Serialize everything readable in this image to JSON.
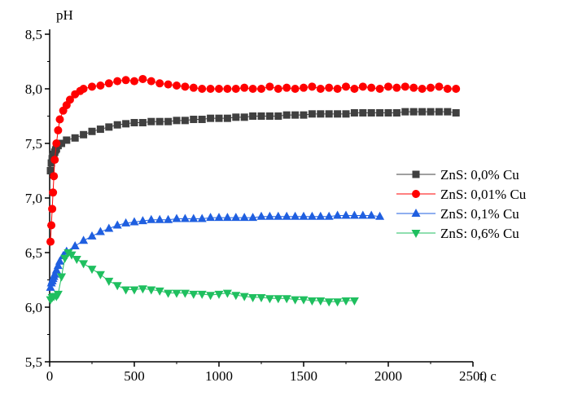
{
  "chart_data": {
    "type": "scatter",
    "title": "",
    "xlabel": "t, c",
    "ylabel": "pH",
    "xlim": [
      0,
      2500
    ],
    "ylim": [
      5.5,
      8.5
    ],
    "xticks": [
      0,
      500,
      1000,
      1500,
      2000,
      2500
    ],
    "yticks": [
      5.5,
      6.0,
      6.5,
      7.0,
      7.5,
      8.0,
      8.5
    ],
    "ytick_labels": [
      "5,5",
      "6,0",
      "6,5",
      "7,0",
      "7,5",
      "8,0",
      "8,5"
    ],
    "grid": false,
    "legend_position": "right",
    "series": [
      {
        "name": "ZnS: 0,0% Cu",
        "color": "#404040",
        "marker": "square",
        "points": [
          [
            5,
            7.25
          ],
          [
            10,
            7.32
          ],
          [
            15,
            7.36
          ],
          [
            20,
            7.38
          ],
          [
            25,
            7.4
          ],
          [
            30,
            7.42
          ],
          [
            35,
            7.44
          ],
          [
            40,
            7.45
          ],
          [
            50,
            7.48
          ],
          [
            70,
            7.5
          ],
          [
            100,
            7.53
          ],
          [
            150,
            7.55
          ],
          [
            200,
            7.58
          ],
          [
            250,
            7.61
          ],
          [
            300,
            7.63
          ],
          [
            350,
            7.65
          ],
          [
            400,
            7.67
          ],
          [
            450,
            7.68
          ],
          [
            500,
            7.69
          ],
          [
            550,
            7.69
          ],
          [
            600,
            7.7
          ],
          [
            650,
            7.7
          ],
          [
            700,
            7.7
          ],
          [
            750,
            7.71
          ],
          [
            800,
            7.71
          ],
          [
            850,
            7.72
          ],
          [
            900,
            7.72
          ],
          [
            950,
            7.73
          ],
          [
            1000,
            7.73
          ],
          [
            1050,
            7.73
          ],
          [
            1100,
            7.74
          ],
          [
            1150,
            7.74
          ],
          [
            1200,
            7.75
          ],
          [
            1250,
            7.75
          ],
          [
            1300,
            7.75
          ],
          [
            1350,
            7.75
          ],
          [
            1400,
            7.76
          ],
          [
            1450,
            7.76
          ],
          [
            1500,
            7.76
          ],
          [
            1550,
            7.77
          ],
          [
            1600,
            7.77
          ],
          [
            1650,
            7.77
          ],
          [
            1700,
            7.77
          ],
          [
            1750,
            7.77
          ],
          [
            1800,
            7.78
          ],
          [
            1850,
            7.78
          ],
          [
            1900,
            7.78
          ],
          [
            1950,
            7.78
          ],
          [
            2000,
            7.78
          ],
          [
            2050,
            7.78
          ],
          [
            2100,
            7.79
          ],
          [
            2150,
            7.79
          ],
          [
            2200,
            7.79
          ],
          [
            2250,
            7.79
          ],
          [
            2300,
            7.79
          ],
          [
            2350,
            7.79
          ],
          [
            2400,
            7.78
          ]
        ]
      },
      {
        "name": "ZnS: 0,01% Cu",
        "color": "#ff0000",
        "marker": "circle",
        "points": [
          [
            5,
            6.6
          ],
          [
            10,
            6.75
          ],
          [
            15,
            6.9
          ],
          [
            20,
            7.05
          ],
          [
            25,
            7.2
          ],
          [
            30,
            7.35
          ],
          [
            40,
            7.5
          ],
          [
            50,
            7.62
          ],
          [
            60,
            7.72
          ],
          [
            80,
            7.8
          ],
          [
            100,
            7.85
          ],
          [
            120,
            7.9
          ],
          [
            150,
            7.95
          ],
          [
            180,
            7.98
          ],
          [
            200,
            8.0
          ],
          [
            250,
            8.02
          ],
          [
            300,
            8.03
          ],
          [
            350,
            8.05
          ],
          [
            400,
            8.07
          ],
          [
            450,
            8.08
          ],
          [
            500,
            8.07
          ],
          [
            550,
            8.09
          ],
          [
            600,
            8.07
          ],
          [
            650,
            8.05
          ],
          [
            700,
            8.04
          ],
          [
            750,
            8.03
          ],
          [
            800,
            8.02
          ],
          [
            850,
            8.01
          ],
          [
            900,
            8.0
          ],
          [
            950,
            8.0
          ],
          [
            1000,
            8.0
          ],
          [
            1050,
            8.0
          ],
          [
            1100,
            8.0
          ],
          [
            1150,
            8.01
          ],
          [
            1200,
            8.0
          ],
          [
            1250,
            8.0
          ],
          [
            1300,
            8.02
          ],
          [
            1350,
            8.0
          ],
          [
            1400,
            8.01
          ],
          [
            1450,
            8.0
          ],
          [
            1500,
            8.01
          ],
          [
            1550,
            8.02
          ],
          [
            1600,
            8.0
          ],
          [
            1650,
            8.01
          ],
          [
            1700,
            8.0
          ],
          [
            1750,
            8.02
          ],
          [
            1800,
            8.0
          ],
          [
            1850,
            8.02
          ],
          [
            1900,
            8.01
          ],
          [
            1950,
            8.0
          ],
          [
            2000,
            8.02
          ],
          [
            2050,
            8.01
          ],
          [
            2100,
            8.02
          ],
          [
            2150,
            8.01
          ],
          [
            2200,
            8.0
          ],
          [
            2250,
            8.01
          ],
          [
            2300,
            8.02
          ],
          [
            2350,
            8.0
          ],
          [
            2400,
            8.0
          ]
        ]
      },
      {
        "name": "ZnS: 0,1% Cu",
        "color": "#1f5fe0",
        "marker": "triangle-up",
        "points": [
          [
            5,
            6.18
          ],
          [
            10,
            6.22
          ],
          [
            15,
            6.24
          ],
          [
            20,
            6.26
          ],
          [
            25,
            6.28
          ],
          [
            30,
            6.3
          ],
          [
            40,
            6.34
          ],
          [
            50,
            6.38
          ],
          [
            60,
            6.42
          ],
          [
            80,
            6.47
          ],
          [
            100,
            6.51
          ],
          [
            150,
            6.56
          ],
          [
            200,
            6.61
          ],
          [
            250,
            6.65
          ],
          [
            300,
            6.69
          ],
          [
            350,
            6.72
          ],
          [
            400,
            6.75
          ],
          [
            450,
            6.77
          ],
          [
            500,
            6.78
          ],
          [
            550,
            6.79
          ],
          [
            600,
            6.8
          ],
          [
            650,
            6.8
          ],
          [
            700,
            6.8
          ],
          [
            750,
            6.81
          ],
          [
            800,
            6.81
          ],
          [
            850,
            6.81
          ],
          [
            900,
            6.81
          ],
          [
            950,
            6.82
          ],
          [
            1000,
            6.82
          ],
          [
            1050,
            6.82
          ],
          [
            1100,
            6.82
          ],
          [
            1150,
            6.82
          ],
          [
            1200,
            6.82
          ],
          [
            1250,
            6.83
          ],
          [
            1300,
            6.83
          ],
          [
            1350,
            6.83
          ],
          [
            1400,
            6.83
          ],
          [
            1450,
            6.83
          ],
          [
            1500,
            6.83
          ],
          [
            1550,
            6.83
          ],
          [
            1600,
            6.83
          ],
          [
            1650,
            6.83
          ],
          [
            1700,
            6.84
          ],
          [
            1750,
            6.84
          ],
          [
            1800,
            6.84
          ],
          [
            1850,
            6.84
          ],
          [
            1900,
            6.84
          ],
          [
            1950,
            6.83
          ]
        ]
      },
      {
        "name": "ZnS: 0,6% Cu",
        "color": "#1fbf5f",
        "marker": "triangle-down",
        "points": [
          [
            5,
            6.07
          ],
          [
            15,
            6.09
          ],
          [
            25,
            6.1
          ],
          [
            40,
            6.1
          ],
          [
            50,
            6.12
          ],
          [
            70,
            6.28
          ],
          [
            90,
            6.45
          ],
          [
            110,
            6.5
          ],
          [
            130,
            6.48
          ],
          [
            160,
            6.44
          ],
          [
            200,
            6.4
          ],
          [
            250,
            6.35
          ],
          [
            300,
            6.3
          ],
          [
            350,
            6.24
          ],
          [
            400,
            6.2
          ],
          [
            450,
            6.16
          ],
          [
            500,
            6.16
          ],
          [
            550,
            6.17
          ],
          [
            600,
            6.16
          ],
          [
            650,
            6.15
          ],
          [
            700,
            6.13
          ],
          [
            750,
            6.13
          ],
          [
            800,
            6.13
          ],
          [
            850,
            6.12
          ],
          [
            900,
            6.12
          ],
          [
            950,
            6.11
          ],
          [
            1000,
            6.12
          ],
          [
            1050,
            6.13
          ],
          [
            1100,
            6.11
          ],
          [
            1150,
            6.1
          ],
          [
            1200,
            6.09
          ],
          [
            1250,
            6.09
          ],
          [
            1300,
            6.08
          ],
          [
            1350,
            6.08
          ],
          [
            1400,
            6.08
          ],
          [
            1450,
            6.07
          ],
          [
            1500,
            6.07
          ],
          [
            1550,
            6.06
          ],
          [
            1600,
            6.06
          ],
          [
            1650,
            6.05
          ],
          [
            1700,
            6.05
          ],
          [
            1750,
            6.06
          ],
          [
            1800,
            6.06
          ]
        ]
      }
    ]
  }
}
